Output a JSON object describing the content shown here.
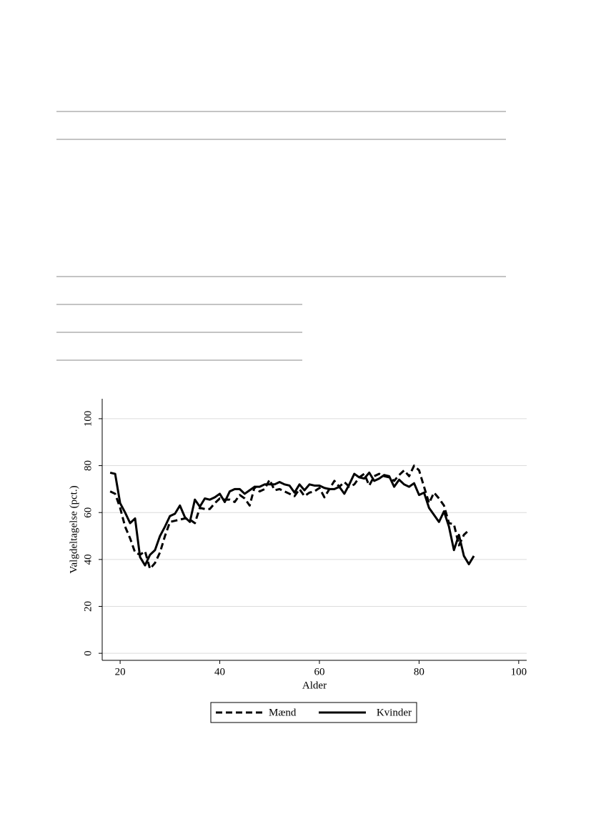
{
  "chart_data": {
    "type": "line",
    "xlabel": "Alder",
    "ylabel": "Valgdeltagelse (pct.)",
    "x": [
      18,
      19,
      20,
      21,
      22,
      23,
      24,
      25,
      26,
      27,
      28,
      29,
      30,
      31,
      32,
      33,
      34,
      35,
      36,
      37,
      38,
      39,
      40,
      41,
      42,
      43,
      44,
      45,
      46,
      47,
      48,
      49,
      50,
      51,
      52,
      53,
      54,
      55,
      56,
      57,
      58,
      59,
      60,
      61,
      62,
      63,
      64,
      65,
      66,
      67,
      68,
      69,
      70,
      71,
      72,
      73,
      74,
      75,
      76,
      77,
      78,
      79,
      80,
      81,
      82,
      83,
      84,
      85,
      86,
      87,
      88,
      89,
      90,
      91
    ],
    "series": [
      {
        "name": "Mænd",
        "color": "#000000",
        "dashed": true,
        "values": [
          69,
          68,
          62,
          54,
          49,
          43,
          42,
          43.5,
          36,
          38.5,
          43,
          50,
          56,
          56.5,
          57,
          57.5,
          57,
          55.5,
          62,
          61.5,
          61.5,
          64,
          66,
          65.5,
          65.5,
          64.5,
          67.5,
          66,
          63,
          71,
          69,
          70,
          74,
          69.5,
          70,
          69,
          68,
          67,
          70,
          67,
          68.5,
          69,
          70.5,
          66.5,
          70,
          73.5,
          71,
          73,
          71,
          72,
          75,
          76.5,
          71.5,
          75.5,
          76.5,
          75.5,
          75,
          73.5,
          76,
          78,
          75.5,
          80,
          78,
          71,
          64,
          68.5,
          66,
          63,
          55.5,
          55,
          46,
          50.5,
          52.5,
          null
        ]
      },
      {
        "name": "Kvinder",
        "color": "#000000",
        "dashed": false,
        "values": [
          77,
          76.5,
          64,
          60,
          55.5,
          57.5,
          41,
          37.5,
          42,
          44,
          50,
          54,
          58.5,
          59.5,
          63,
          58,
          56,
          65.5,
          62.5,
          66,
          65.5,
          66.5,
          68,
          64.5,
          69,
          70,
          70,
          68,
          69.5,
          71,
          71,
          72,
          72,
          72,
          73,
          72,
          71.5,
          68.5,
          72,
          69.5,
          72,
          71.5,
          71.5,
          70.5,
          70,
          70,
          71,
          68,
          72,
          76.5,
          75,
          74.5,
          77,
          73.5,
          74.5,
          76,
          75.5,
          71,
          74,
          72,
          71,
          72.5,
          67.5,
          68.5,
          62,
          59,
          56,
          60.5,
          54,
          44,
          50.5,
          41.5,
          38,
          41.5
        ]
      }
    ],
    "xlim": [
      16.4,
      101.6
    ],
    "xticks": [
      20,
      40,
      60,
      80,
      100
    ],
    "ylim": [
      -3,
      108.5
    ],
    "yticks": [
      0,
      20,
      40,
      60,
      80,
      100
    ],
    "grid": true,
    "legend": "bottom"
  }
}
